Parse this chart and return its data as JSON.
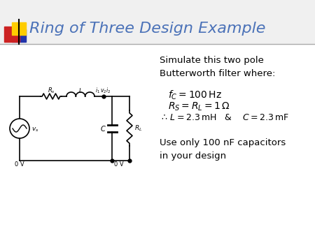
{
  "title": "Ring of Three Design Example",
  "title_color": "#4B72B8",
  "title_fontsize": 16,
  "bg_color": "#FFFFFF",
  "logo_colors": {
    "red": "#CC2222",
    "yellow": "#FFCC00",
    "blue": "#2233AA"
  },
  "body_text_1": "Simulate this two pole\nButterworth filter where:",
  "body_text_2": "Use only 100 nF capacitors\nin your design",
  "eq1": "$f_C = 100\\,\\mathrm{Hz}$",
  "eq2": "$R_S = R_L = 1\\,\\Omega$",
  "eq3": "$\\therefore\\, L = 2.3\\,\\mathrm{mH}$   &    $C = 2.3\\,\\mathrm{mF}$",
  "text_fontsize": 9.5,
  "eq_fontsize": 9.5
}
